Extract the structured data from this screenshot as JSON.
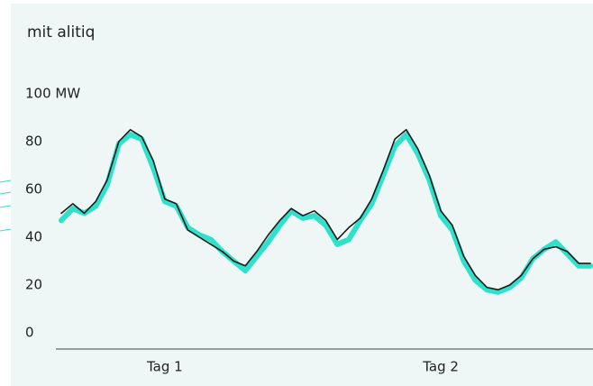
{
  "chart_data": {
    "type": "line",
    "title": "mit alitiq",
    "categories": [
      null,
      null,
      null,
      null,
      null,
      null,
      null,
      null,
      null,
      "Tag 1",
      null,
      null,
      null,
      null,
      null,
      null,
      null,
      null,
      null,
      null,
      null,
      null,
      null,
      null,
      null,
      null,
      null,
      null,
      null,
      null,
      null,
      null,
      null,
      "Tag 2",
      null,
      null,
      null,
      null,
      null,
      null,
      null,
      null,
      null,
      null,
      null,
      null,
      null
    ],
    "series": [
      {
        "color": "#2fe0cb",
        "values": [
          47,
          52,
          50,
          53,
          62,
          79,
          83,
          81,
          69,
          55,
          53,
          44,
          41,
          39,
          34,
          30,
          26,
          32,
          38,
          45,
          51,
          48,
          49,
          45,
          37,
          39,
          47,
          54,
          66,
          78,
          83,
          75,
          64,
          49,
          43,
          30,
          22,
          18,
          17,
          19,
          23,
          31,
          35,
          38,
          33,
          28,
          28
        ]
      },
      {
        "color": "#1a1a1a",
        "values": [
          50,
          54,
          50,
          55,
          64,
          80,
          85,
          82,
          72,
          56,
          54,
          43,
          40,
          37,
          34,
          30,
          28,
          34,
          41,
          47,
          52,
          49,
          51,
          47,
          39,
          44,
          48,
          56,
          68,
          81,
          85,
          77,
          66,
          51,
          45,
          32,
          24,
          19,
          18,
          20,
          24,
          31,
          35,
          36,
          34,
          29,
          29
        ]
      }
    ],
    "ylim": [
      0,
      100
    ],
    "yticks": [
      0,
      20,
      40,
      60,
      80,
      {
        "value": 100,
        "label": "100 MW"
      }
    ]
  }
}
